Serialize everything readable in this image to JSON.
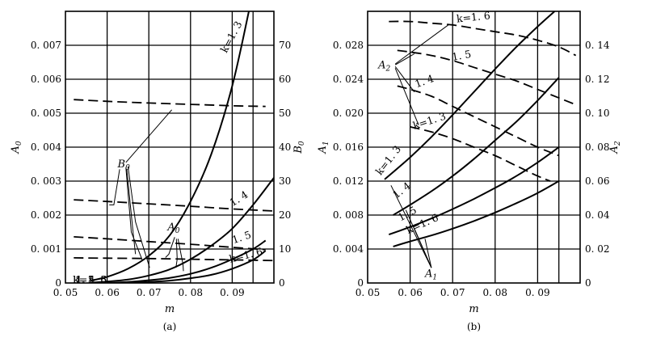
{
  "chart_data": [
    {
      "panel_caption": "(a)",
      "type": "line",
      "xlabel": "m",
      "ylabel_left": "A",
      "ylabel_left_sub": "0",
      "ylabel_right": "B",
      "ylabel_right_sub": "0",
      "xlim": [
        0.05,
        0.1
      ],
      "ylim_left": [
        0,
        0.008
      ],
      "ylim_right": [
        0,
        80
      ],
      "grid": true,
      "x_ticks": [
        "0. 05",
        "0. 06",
        "0. 07",
        "0. 08",
        "0. 09"
      ],
      "x_tick_values": [
        0.05,
        0.06,
        0.07,
        0.08,
        0.09
      ],
      "y_left_ticks": [
        "0",
        "0. 001",
        "0. 002",
        "0. 003",
        "0. 004",
        "0. 005",
        "0. 006",
        "0. 007"
      ],
      "y_left_tick_values": [
        0,
        0.001,
        0.002,
        0.003,
        0.004,
        0.005,
        0.006,
        0.007
      ],
      "y_right_ticks": [
        "0",
        "10",
        "20",
        "30",
        "40",
        "50",
        "60",
        "70"
      ],
      "y_right_tick_values": [
        0,
        10,
        20,
        30,
        40,
        50,
        60,
        70
      ],
      "series": [
        {
          "name": "k=1. 3",
          "axis": "left",
          "style": "solid",
          "x": [
            0.056,
            0.06,
            0.065,
            0.07,
            0.075,
            0.08,
            0.085,
            0.09,
            0.094
          ],
          "y": [
            7e-05,
            0.00018,
            0.00042,
            0.0008,
            0.0014,
            0.0024,
            0.0038,
            0.0058,
            0.008
          ]
        },
        {
          "name": "1. 4",
          "axis": "left",
          "style": "solid",
          "x": [
            0.056,
            0.06,
            0.065,
            0.07,
            0.075,
            0.08,
            0.085,
            0.09,
            0.095,
            0.1
          ],
          "y": [
            1e-05,
            4e-05,
            0.0001,
            0.00022,
            0.0004,
            0.0007,
            0.0011,
            0.0016,
            0.0023,
            0.0031
          ]
        },
        {
          "name": "1. 5",
          "axis": "left",
          "style": "solid",
          "x": [
            0.06,
            0.065,
            0.07,
            0.075,
            0.08,
            0.085,
            0.09,
            0.095,
            0.098
          ],
          "y": [
            0.0,
            3e-05,
            8e-05,
            0.00015,
            0.00027,
            0.00045,
            0.0007,
            0.001,
            0.00125
          ]
        },
        {
          "name": "k=1. 6",
          "axis": "left",
          "style": "solid",
          "x": [
            0.065,
            0.07,
            0.075,
            0.08,
            0.085,
            0.09,
            0.095,
            0.098
          ],
          "y": [
            0.0,
            3e-05,
            7e-05,
            0.00014,
            0.00024,
            0.00042,
            0.00068,
            0.00095
          ]
        },
        {
          "name": "k=1. 3",
          "axis": "right",
          "style": "dashed",
          "x": [
            0.052,
            0.06,
            0.07,
            0.08,
            0.09,
            0.098
          ],
          "y": [
            54,
            53.5,
            53,
            52.6,
            52.2,
            52
          ]
        },
        {
          "name": "1. 4",
          "axis": "right",
          "style": "dashed",
          "x": [
            0.052,
            0.06,
            0.07,
            0.08,
            0.09,
            0.1
          ],
          "y": [
            24.5,
            24,
            23.3,
            22.6,
            21.8,
            21.2
          ]
        },
        {
          "name": "1. 5",
          "axis": "right",
          "style": "dashed",
          "x": [
            0.052,
            0.06,
            0.07,
            0.08,
            0.09,
            0.098
          ],
          "y": [
            13.6,
            13,
            12.2,
            11.4,
            10.5,
            9.8
          ]
        },
        {
          "name": "k=1. 6",
          "axis": "right",
          "style": "dashed",
          "x": [
            0.052,
            0.06,
            0.07,
            0.08,
            0.09,
            0.1
          ],
          "y": [
            7.4,
            7.3,
            7.2,
            7.0,
            6.8,
            6.6
          ]
        }
      ],
      "annotations": [
        {
          "text": "B",
          "sub": "0"
        },
        {
          "text": "A",
          "sub": "0"
        }
      ]
    },
    {
      "panel_caption": "(b)",
      "type": "line",
      "xlabel": "m",
      "ylabel_left": "A",
      "ylabel_left_sub": "1",
      "ylabel_right": "A",
      "ylabel_right_sub": "2",
      "xlim": [
        0.05,
        0.1
      ],
      "ylim_left": [
        0,
        0.032
      ],
      "ylim_right": [
        0,
        0.16
      ],
      "grid": true,
      "x_ticks": [
        "0. 05",
        "0. 06",
        "0. 07",
        "0. 08",
        "0. 09"
      ],
      "x_tick_values": [
        0.05,
        0.06,
        0.07,
        0.08,
        0.09
      ],
      "y_left_ticks": [
        "0",
        "0. 004",
        "0. 008",
        "0. 012",
        "0. 016",
        "0. 020",
        "0. 024",
        "0. 028"
      ],
      "y_left_tick_values": [
        0,
        0.004,
        0.008,
        0.012,
        0.016,
        0.02,
        0.024,
        0.028
      ],
      "y_right_ticks": [
        "0",
        "0. 02",
        "0. 04",
        "0. 06",
        "0. 08",
        "0. 10",
        "0. 12",
        "0. 14"
      ],
      "y_right_tick_values": [
        0,
        0.02,
        0.04,
        0.06,
        0.08,
        0.1,
        0.12,
        0.14
      ],
      "series": [
        {
          "name": "k=1. 3",
          "axis": "left",
          "style": "solid",
          "x": [
            0.054,
            0.06,
            0.065,
            0.07,
            0.075,
            0.08,
            0.085,
            0.09,
            0.094
          ],
          "y": [
            0.0122,
            0.0148,
            0.0172,
            0.0198,
            0.0225,
            0.0252,
            0.0278,
            0.0302,
            0.032
          ]
        },
        {
          "name": "1. 4",
          "axis": "left",
          "style": "solid",
          "x": [
            0.056,
            0.06,
            0.065,
            0.07,
            0.075,
            0.08,
            0.085,
            0.09,
            0.095
          ],
          "y": [
            0.008,
            0.0092,
            0.0108,
            0.0126,
            0.0146,
            0.0168,
            0.019,
            0.0215,
            0.0242
          ]
        },
        {
          "name": "1. 5",
          "axis": "left",
          "style": "solid",
          "x": [
            0.055,
            0.06,
            0.065,
            0.07,
            0.075,
            0.08,
            0.085,
            0.09,
            0.095
          ],
          "y": [
            0.0057,
            0.0066,
            0.0076,
            0.0087,
            0.0099,
            0.0112,
            0.0126,
            0.0142,
            0.016
          ]
        },
        {
          "name": "k=1. 6",
          "axis": "left",
          "style": "solid",
          "x": [
            0.056,
            0.06,
            0.065,
            0.07,
            0.075,
            0.08,
            0.085,
            0.09,
            0.095
          ],
          "y": [
            0.0043,
            0.0049,
            0.0056,
            0.0064,
            0.0073,
            0.0083,
            0.0094,
            0.0106,
            0.012
          ]
        },
        {
          "name": "k=1. 6",
          "axis": "right",
          "style": "dashed",
          "x": [
            0.055,
            0.06,
            0.065,
            0.07,
            0.075,
            0.08,
            0.085,
            0.09,
            0.095,
            0.099
          ],
          "y": [
            0.154,
            0.154,
            0.153,
            0.152,
            0.15,
            0.148,
            0.146,
            0.143,
            0.139,
            0.134
          ]
        },
        {
          "name": "1. 5",
          "axis": "right",
          "style": "dashed",
          "x": [
            0.057,
            0.06,
            0.065,
            0.07,
            0.075,
            0.08,
            0.085,
            0.09,
            0.095,
            0.099
          ],
          "y": [
            0.137,
            0.136,
            0.134,
            0.131,
            0.127,
            0.123,
            0.119,
            0.114,
            0.109,
            0.105
          ]
        },
        {
          "name": "1. 4",
          "axis": "right",
          "style": "dashed",
          "x": [
            0.057,
            0.06,
            0.065,
            0.07,
            0.075,
            0.08,
            0.085,
            0.09,
            0.095
          ],
          "y": [
            0.116,
            0.114,
            0.11,
            0.104,
            0.098,
            0.092,
            0.086,
            0.08,
            0.075
          ]
        },
        {
          "name": "k=1. 3",
          "axis": "right",
          "style": "dashed",
          "x": [
            0.06,
            0.065,
            0.07,
            0.075,
            0.08,
            0.085,
            0.09,
            0.093
          ],
          "y": [
            0.092,
            0.089,
            0.085,
            0.08,
            0.075,
            0.069,
            0.063,
            0.06
          ]
        }
      ],
      "annotations": [
        {
          "text": "A",
          "sub": "2"
        },
        {
          "text": "A",
          "sub": "1"
        }
      ]
    }
  ]
}
